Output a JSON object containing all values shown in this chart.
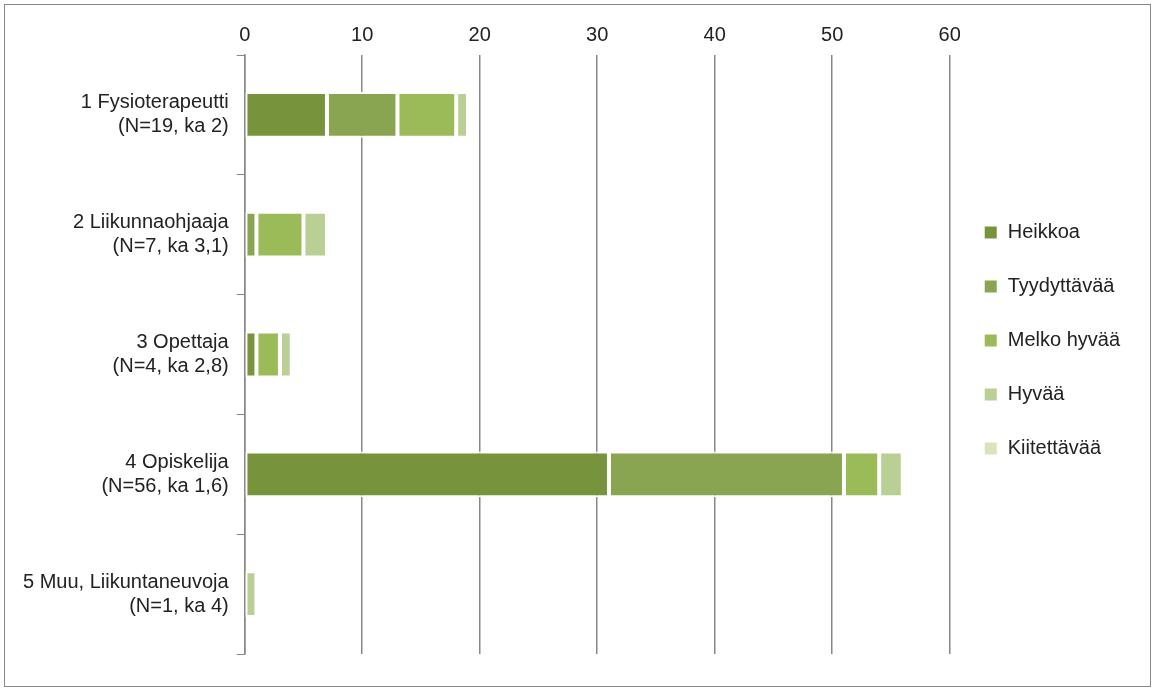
{
  "chart_data": {
    "type": "bar",
    "orientation": "horizontal",
    "stacked": true,
    "categories": [
      "1 Fysioterapeutti\n(N=19, ka 2)",
      "2 Liikunnaohjaaja\n(N=7, ka 3,1)",
      "3 Opettaja\n(N=4, ka 2,8)",
      "4 Opiskelija\n(N=56, ka 1,6)",
      "5 Muu, Liikuntaneuvoja\n(N=1, ka 4)"
    ],
    "series": [
      {
        "name": "Heikkoa",
        "color": "#77933c",
        "values": [
          7,
          0,
          1,
          31,
          0
        ]
      },
      {
        "name": "Tyydyttävää",
        "color": "#8aa552",
        "values": [
          6,
          1,
          0,
          20,
          0
        ]
      },
      {
        "name": "Melko hyvää",
        "color": "#9bbb59",
        "values": [
          5,
          4,
          2,
          3,
          0
        ]
      },
      {
        "name": "Hyvää",
        "color": "#b9cf93",
        "values": [
          1,
          2,
          1,
          2,
          1
        ]
      },
      {
        "name": "Kiitettävää",
        "color": "#d7e4bd",
        "values": [
          0,
          0,
          0,
          0,
          0
        ]
      }
    ],
    "xlim": [
      0,
      60
    ],
    "xticks": [
      0,
      10,
      20,
      30,
      40,
      50,
      60
    ],
    "grid": "x",
    "legend": "right"
  }
}
